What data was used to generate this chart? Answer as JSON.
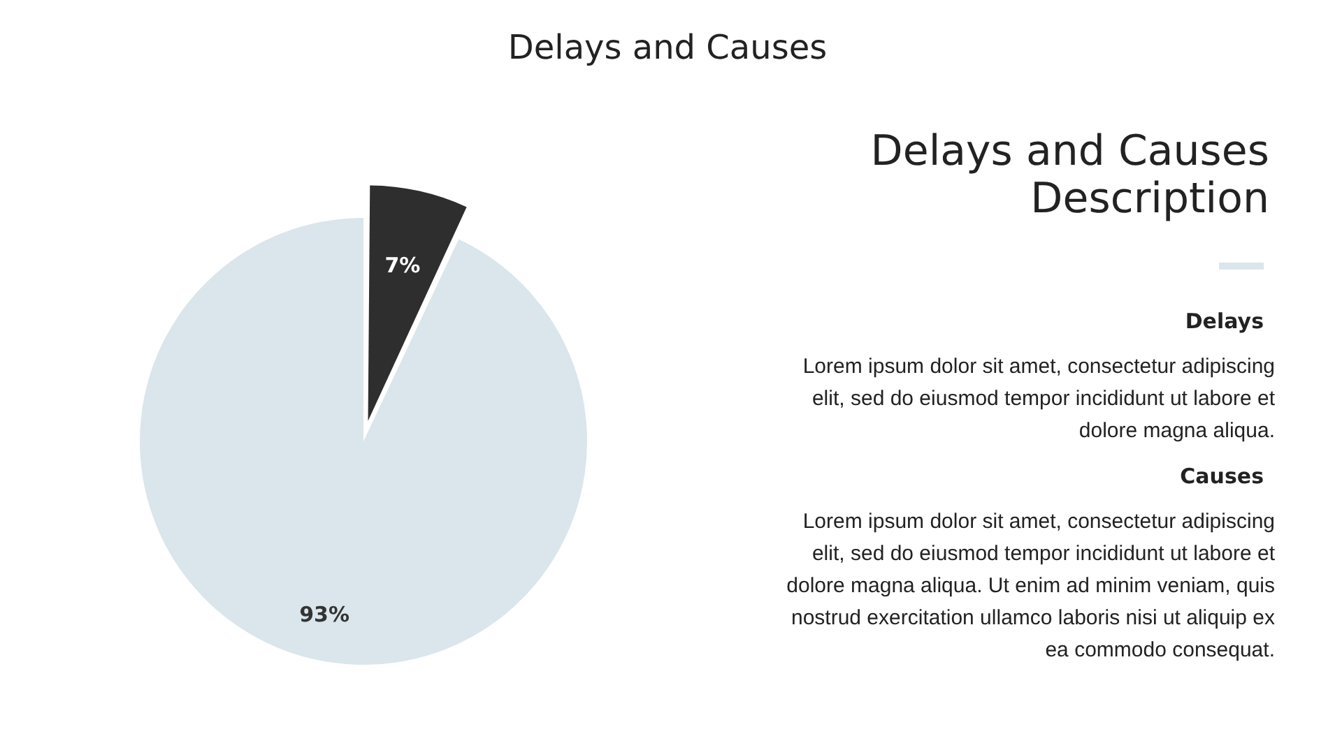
{
  "chart_data": {
    "type": "pie",
    "title": "Delays and Causes",
    "categories": [
      null,
      null
    ],
    "values": [
      7,
      93
    ],
    "value_labels": [
      "7%",
      "93%"
    ],
    "colors": [
      "#2e2e2e",
      "#dae6ec"
    ],
    "legend": false,
    "annotations": [
      "Delays and Causes Description",
      "Delays",
      "Lorem ipsum dolor sit amet, consectetur adipiscing elit, sed do eiusmod tempor incididunt ut labore et dolore magna aliqua.",
      "Causes",
      "Lorem ipsum dolor sit amet, consectetur adipiscing elit, sed do eiusmod tempor incididunt ut labore et dolore magna aliqua. Ut enim ad minim veniam, quis nostrud exercitation ullamco laboris nisi ut aliquip ex ea commodo consequat."
    ]
  }
}
